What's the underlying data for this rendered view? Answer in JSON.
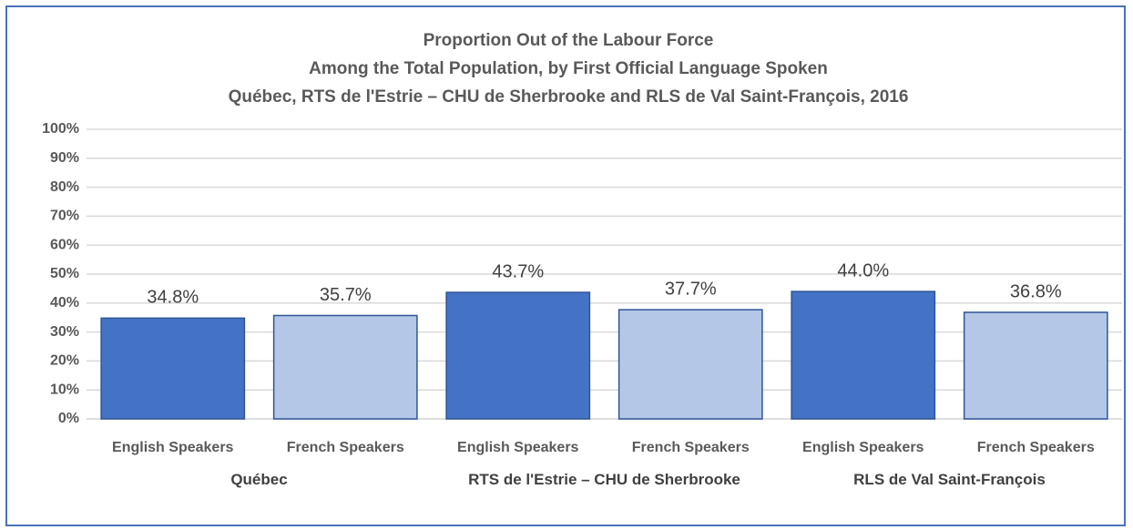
{
  "chart_data": {
    "type": "bar",
    "title": [
      "Proportion Out of the Labour Force",
      "Among the Total Population, by First Official Language Spoken",
      "Québec, RTS de l'Estrie – CHU de Sherbrooke and RLS de Val Saint-François, 2016"
    ],
    "categories": [
      "English Speakers",
      "French Speakers",
      "English Speakers",
      "French Speakers",
      "English Speakers",
      "French Speakers"
    ],
    "groups": [
      "Québec",
      "RTS de l'Estrie – CHU de Sherbrooke",
      "RLS de Val Saint-François"
    ],
    "values": [
      34.8,
      35.7,
      43.7,
      37.7,
      44.0,
      36.8
    ],
    "value_labels": [
      "34.8%",
      "35.7%",
      "43.7%",
      "37.7%",
      "44.0%",
      "36.8%"
    ],
    "colors": [
      "#4472c4",
      "#b4c7e7",
      "#4472c4",
      "#b4c7e7",
      "#4472c4",
      "#b4c7e7"
    ],
    "ylim": [
      0,
      100
    ],
    "yticks": [
      {
        "value": 0,
        "label": "0%"
      },
      {
        "value": 10,
        "label": "10%"
      },
      {
        "value": 20,
        "label": "20%"
      },
      {
        "value": 30,
        "label": "30%"
      },
      {
        "value": 40,
        "label": "40%"
      },
      {
        "value": 50,
        "label": "50%"
      },
      {
        "value": 60,
        "label": "60%"
      },
      {
        "value": 70,
        "label": "70%"
      },
      {
        "value": 80,
        "label": "80%"
      },
      {
        "value": 90,
        "label": "90%"
      },
      {
        "value": 100,
        "label": "100%"
      }
    ],
    "grid": true
  }
}
